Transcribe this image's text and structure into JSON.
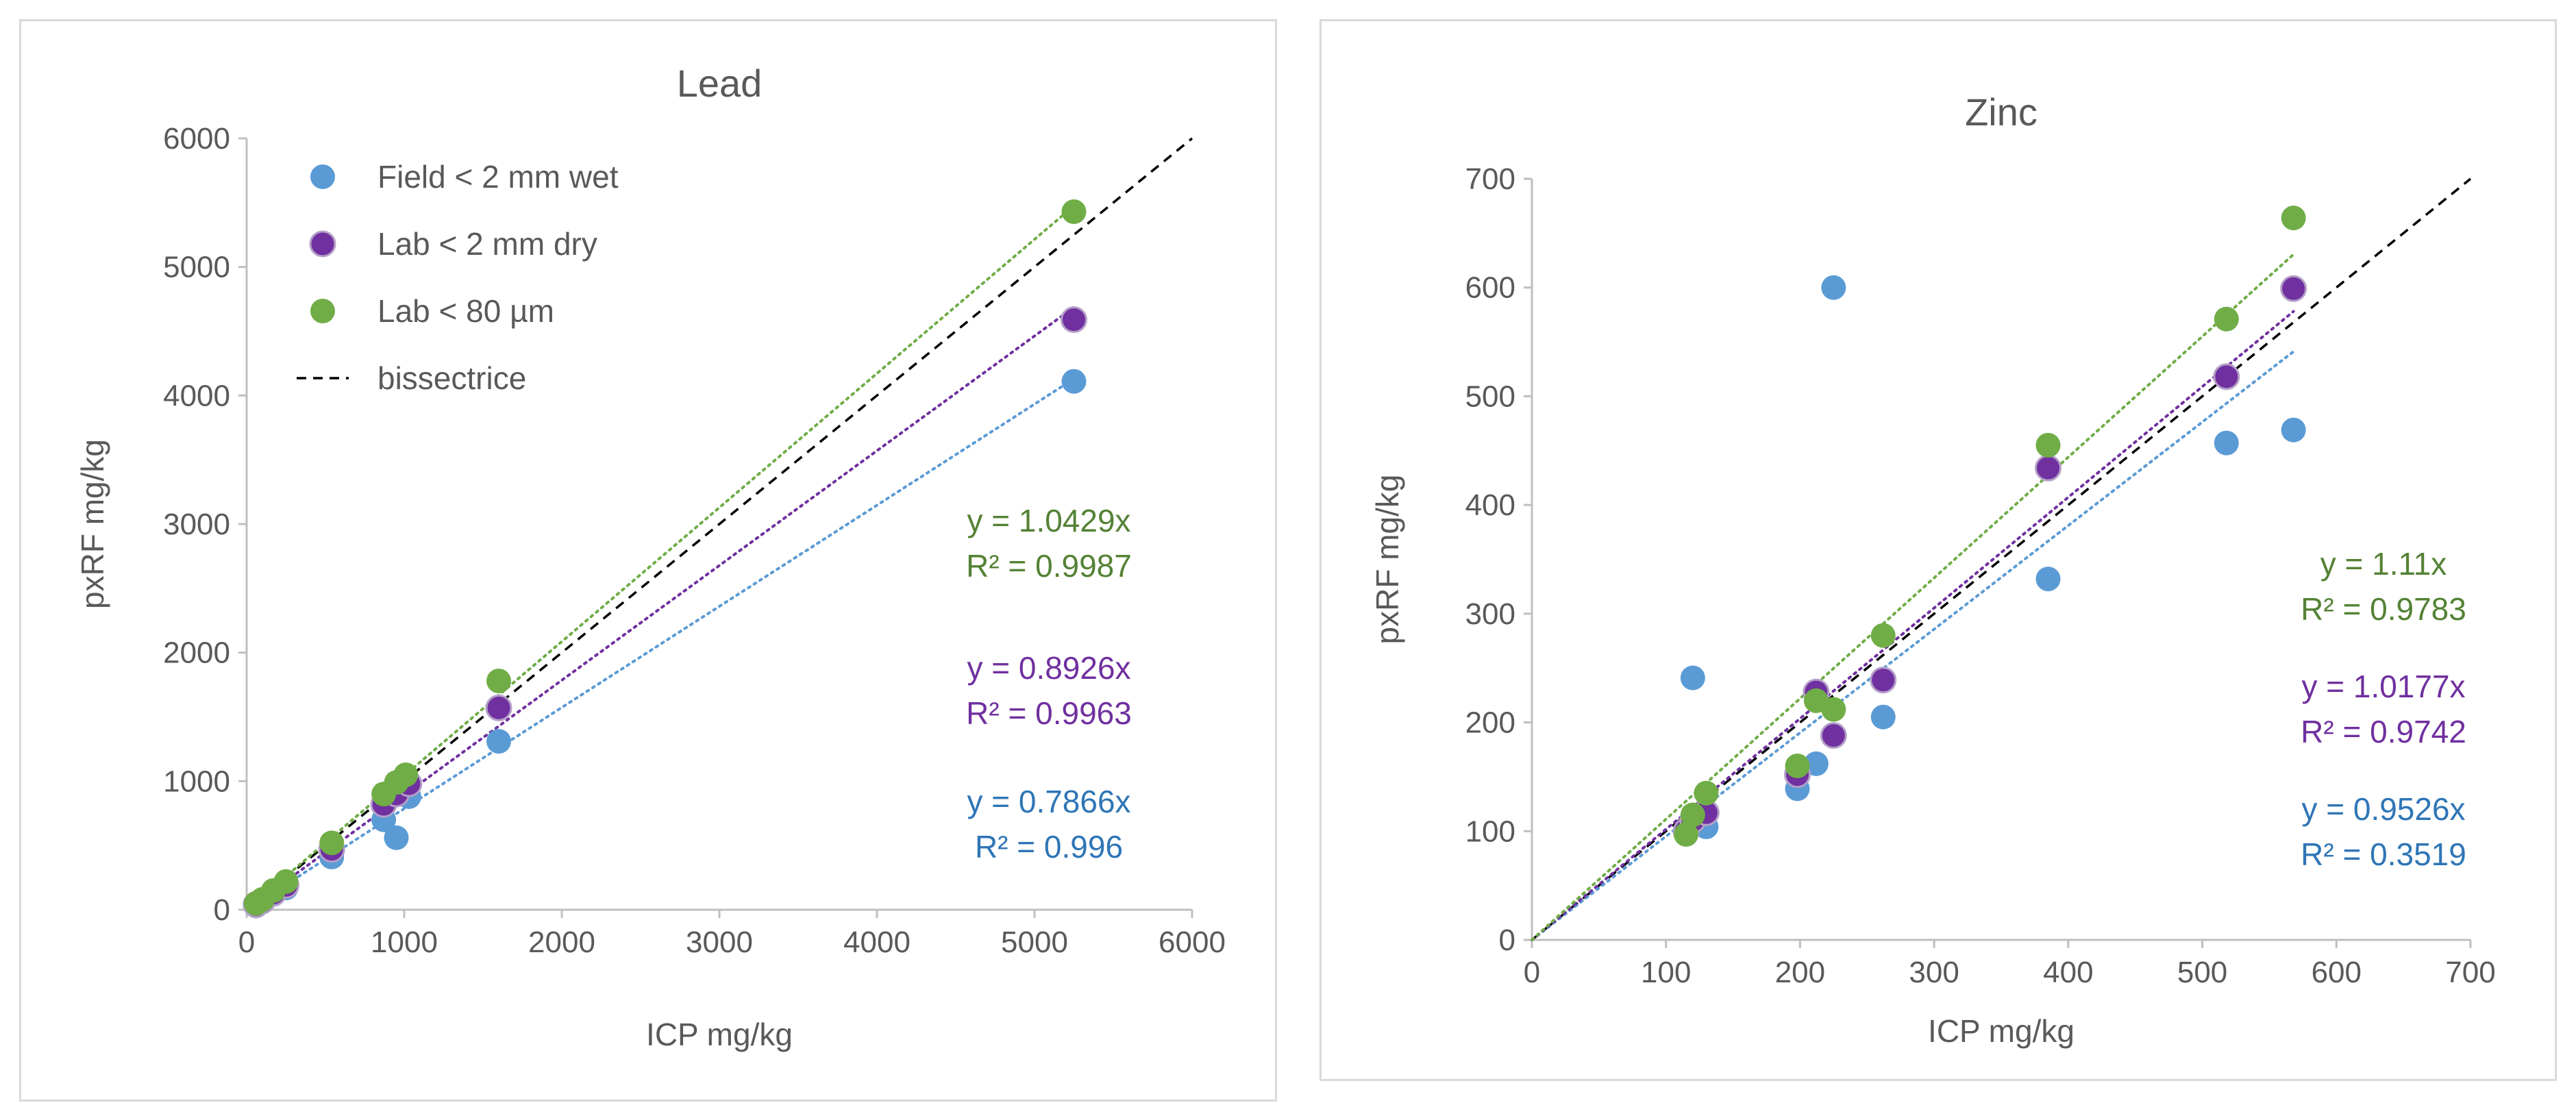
{
  "chart_data": [
    {
      "type": "scatter",
      "title": "Lead",
      "xlabel": "ICP mg/kg",
      "ylabel": "pxRF mg/kg",
      "xlim": [
        0,
        6000
      ],
      "ylim": [
        0,
        6000
      ],
      "xticks": [
        0,
        1000,
        2000,
        3000,
        4000,
        5000,
        6000
      ],
      "yticks": [
        0,
        1000,
        2000,
        3000,
        4000,
        5000,
        6000
      ],
      "legend": [
        {
          "name": "Field < 2 mm wet",
          "color": "#5b9bd5",
          "kind": "marker"
        },
        {
          "name": "Lab < 2 mm dry",
          "color": "#7030a0",
          "kind": "marker"
        },
        {
          "name": "Lab < 80 µm",
          "color": "#70ad47",
          "kind": "marker"
        },
        {
          "name": "bissectrice",
          "color": "#000000",
          "kind": "dashed"
        }
      ],
      "series": [
        {
          "name": "Field < 2 mm wet",
          "color": "#5b9bd5",
          "slope": 0.7866,
          "x": [
            60,
            100,
            170,
            250,
            540,
            870,
            950,
            1030,
            1600,
            5250
          ],
          "y": [
            30,
            60,
            120,
            170,
            410,
            700,
            560,
            880,
            1310,
            4110
          ]
        },
        {
          "name": "Lab < 2 mm dry",
          "color": "#7030a0",
          "slope": 0.8926,
          "x": [
            60,
            100,
            170,
            250,
            540,
            870,
            950,
            1030,
            1600,
            5250
          ],
          "y": [
            40,
            70,
            130,
            190,
            470,
            820,
            900,
            980,
            1570,
            4590
          ]
        },
        {
          "name": "Lab < 80 µm",
          "color": "#70ad47",
          "slope": 1.0429,
          "x": [
            60,
            100,
            170,
            250,
            540,
            870,
            950,
            1010,
            1600,
            5250
          ],
          "y": [
            50,
            80,
            150,
            220,
            520,
            900,
            990,
            1050,
            1780,
            5430
          ]
        }
      ],
      "equations": [
        {
          "eq": "y = 1.0429x",
          "r2": "R² = 0.9987",
          "color": "#548235"
        },
        {
          "eq": "y = 0.8926x",
          "r2": "R² = 0.9963",
          "color": "#7030a0"
        },
        {
          "eq": "y = 0.7866x",
          "r2": "R² = 0.996",
          "color": "#2e75b6"
        }
      ]
    },
    {
      "type": "scatter",
      "title": "Zinc",
      "xlabel": "ICP mg/kg",
      "ylabel": "pxRF mg/kg",
      "xlim": [
        0,
        700
      ],
      "ylim": [
        0,
        700
      ],
      "xticks": [
        0,
        100,
        200,
        300,
        400,
        500,
        600,
        700
      ],
      "yticks": [
        0,
        100,
        200,
        300,
        400,
        500,
        600,
        700
      ],
      "series": [
        {
          "name": "Field < 2 mm wet",
          "color": "#5b9bd5",
          "slope": 0.9526,
          "x": [
            115,
            120,
            130,
            198,
            212,
            225,
            262,
            385,
            518,
            568
          ],
          "y": [
            100,
            241,
            104,
            139,
            162,
            600,
            205,
            332,
            457,
            469
          ]
        },
        {
          "name": "Lab < 2 mm dry",
          "color": "#7030a0",
          "slope": 1.0177,
          "x": [
            115,
            120,
            130,
            198,
            212,
            225,
            262,
            385,
            518,
            568
          ],
          "y": [
            100,
            110,
            117,
            152,
            228,
            188,
            239,
            434,
            518,
            599
          ]
        },
        {
          "name": "Lab < 80 µm",
          "color": "#70ad47",
          "slope": 1.11,
          "x": [
            115,
            120,
            130,
            198,
            212,
            225,
            262,
            385,
            518,
            568
          ],
          "y": [
            97,
            115,
            135,
            160,
            220,
            212,
            280,
            455,
            571,
            664
          ]
        }
      ],
      "equations": [
        {
          "eq": "y = 1.11x",
          "r2": "R² = 0.9783",
          "color": "#548235"
        },
        {
          "eq": "y = 1.0177x",
          "r2": "R² = 0.9742",
          "color": "#7030a0"
        },
        {
          "eq": "y = 0.9526x",
          "r2": "R² = 0.3519",
          "color": "#2e75b6"
        }
      ]
    }
  ]
}
